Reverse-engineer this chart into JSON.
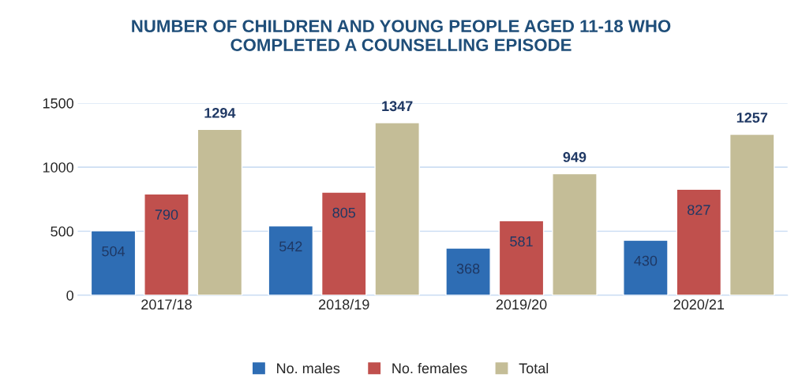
{
  "chart_data": {
    "type": "bar",
    "title": "NUMBER OF CHILDREN AND YOUNG PEOPLE AGED 11-18 WHO\nCOMPLETED A COUNSELLING EPISODE",
    "categories": [
      "2017/18",
      "2018/19",
      "2019/20",
      "2020/21"
    ],
    "series": [
      {
        "name": "No. males",
        "color": "#2e6db4",
        "values": [
          504,
          542,
          368,
          430
        ]
      },
      {
        "name": "No. females",
        "color": "#c0504d",
        "values": [
          790,
          805,
          581,
          827
        ]
      },
      {
        "name": "Total",
        "color": "#c4bd97",
        "values": [
          1294,
          1347,
          949,
          1257
        ]
      }
    ],
    "ylim": [
      0,
      1500
    ],
    "yticks": [
      0,
      500,
      1000,
      1500
    ],
    "grid": "y",
    "legend": "bottom",
    "data_labels": true
  }
}
